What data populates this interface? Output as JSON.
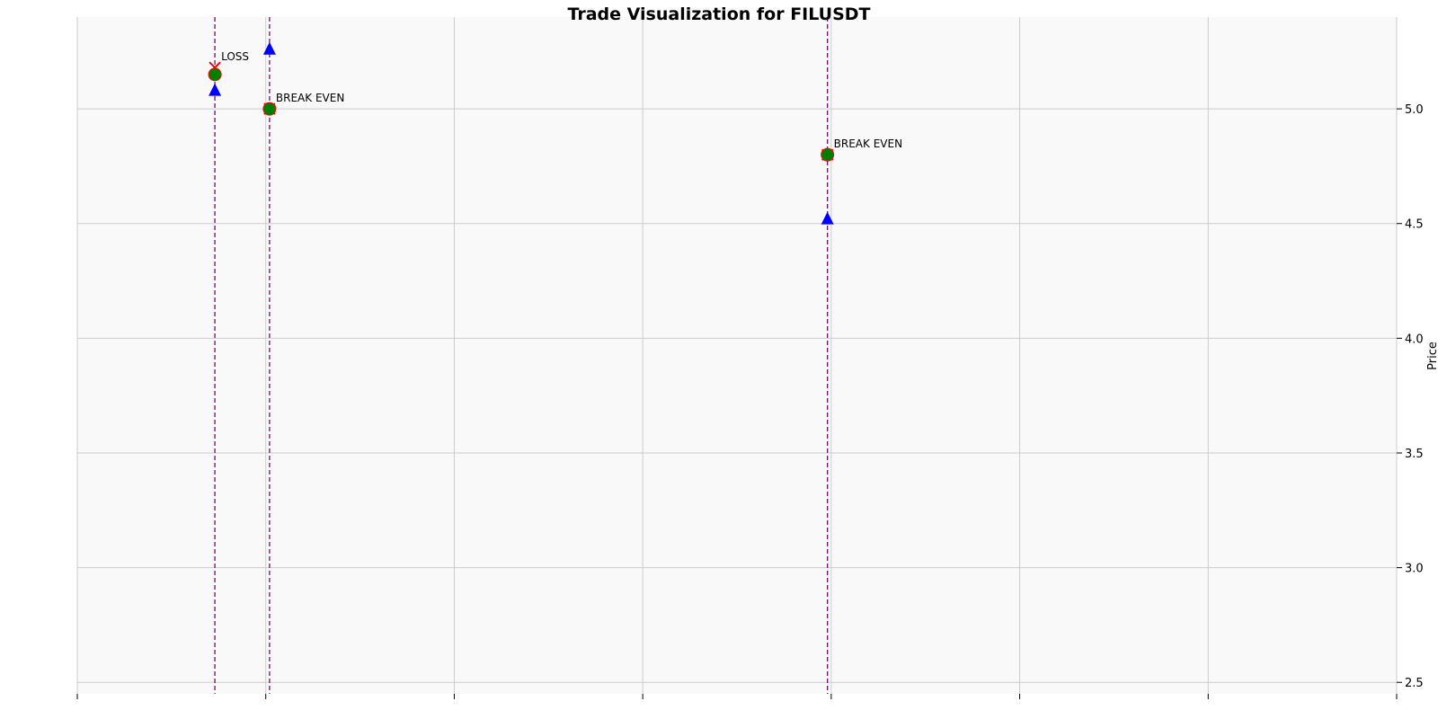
{
  "chart_data": {
    "type": "scatter",
    "title": "Trade Visualization for FILUSDT",
    "xlabel": "",
    "ylabel": "Price",
    "x_index_range": [
      0,
      7
    ],
    "ylim": [
      2.45,
      5.4
    ],
    "y_ticks": [
      2.5,
      3.0,
      3.5,
      4.0,
      4.5,
      5.0
    ],
    "y_tick_labels": [
      "2.5",
      "3.0",
      "3.5",
      "4.0",
      "4.5",
      "5.0"
    ],
    "y_axis_side": "right",
    "x_tick_count": 8,
    "x_tick_labels": [],
    "grid": true,
    "background_color": "#f9f9f9",
    "grid_color": "#cccccc",
    "trade_line_color": "#800080",
    "trades": [
      {
        "x_index": 0.73,
        "entry_price": 5.08,
        "exit_price": 5.15,
        "stop_marker_price": 5.18,
        "result": "LOSS"
      },
      {
        "x_index": 1.02,
        "entry_price": 5.26,
        "exit_price": 5.0,
        "stop_marker_price": 5.0,
        "result": "BREAK EVEN"
      },
      {
        "x_index": 3.98,
        "entry_price": 4.52,
        "exit_price": 4.8,
        "stop_marker_price": 4.8,
        "result": "BREAK EVEN"
      }
    ],
    "marker_colors": {
      "entry": "#0000ff",
      "exit": "#008000",
      "stop": "#ff0000"
    }
  }
}
